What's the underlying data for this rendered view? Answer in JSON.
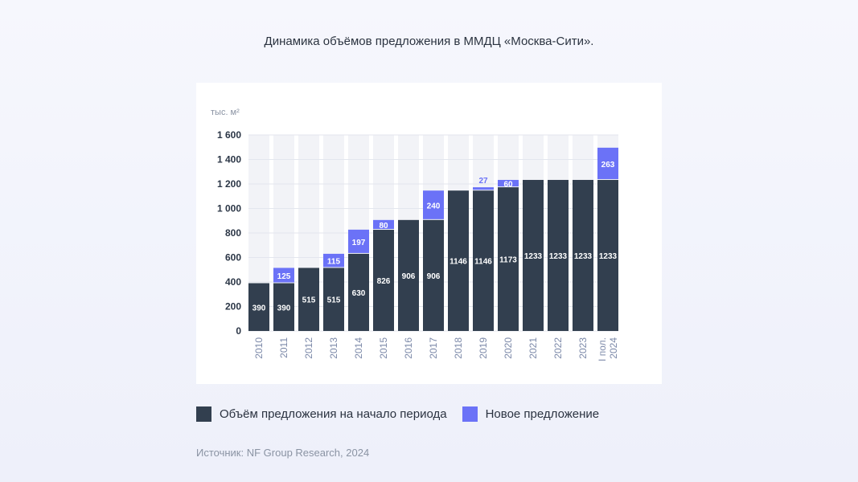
{
  "title": "Динамика объёмов предложения в ММДЦ «Москва-Сити».",
  "source": "Источник: NF Group Research, 2024",
  "colors": {
    "base": "#323f4f",
    "new": "#6b72f7",
    "column_bg": "#f2f3f7"
  },
  "chart_data": {
    "type": "bar",
    "stacked": true,
    "unit_label": "тыс. м²",
    "ylim": [
      0,
      1600
    ],
    "yticks": [
      "0",
      "200",
      "400",
      "600",
      "800",
      "1 000",
      "1 200",
      "1 400",
      "1 600"
    ],
    "ytick_values": [
      0,
      200,
      400,
      600,
      800,
      1000,
      1200,
      1400,
      1600
    ],
    "categories": [
      "2010",
      "2011",
      "2012",
      "2013",
      "2014",
      "2015",
      "2016",
      "2017",
      "2018",
      "2019",
      "2020",
      "2021",
      "2022",
      "2023",
      "I пол. 2024"
    ],
    "series": [
      {
        "name": "Объём предложения на начало периода",
        "values": [
          390,
          390,
          515,
          515,
          630,
          826,
          906,
          906,
          1146,
          1146,
          1173,
          1233,
          1233,
          1233,
          1233
        ]
      },
      {
        "name": "Новое предложение",
        "values": [
          0,
          125,
          0,
          115,
          197,
          80,
          0,
          240,
          0,
          27,
          60,
          0,
          0,
          0,
          263
        ]
      }
    ],
    "legend_position": "bottom"
  },
  "legend": [
    {
      "label": "Объём предложения на начало периода",
      "color": "#323f4f"
    },
    {
      "label": "Новое предложение",
      "color": "#6b72f7"
    }
  ]
}
